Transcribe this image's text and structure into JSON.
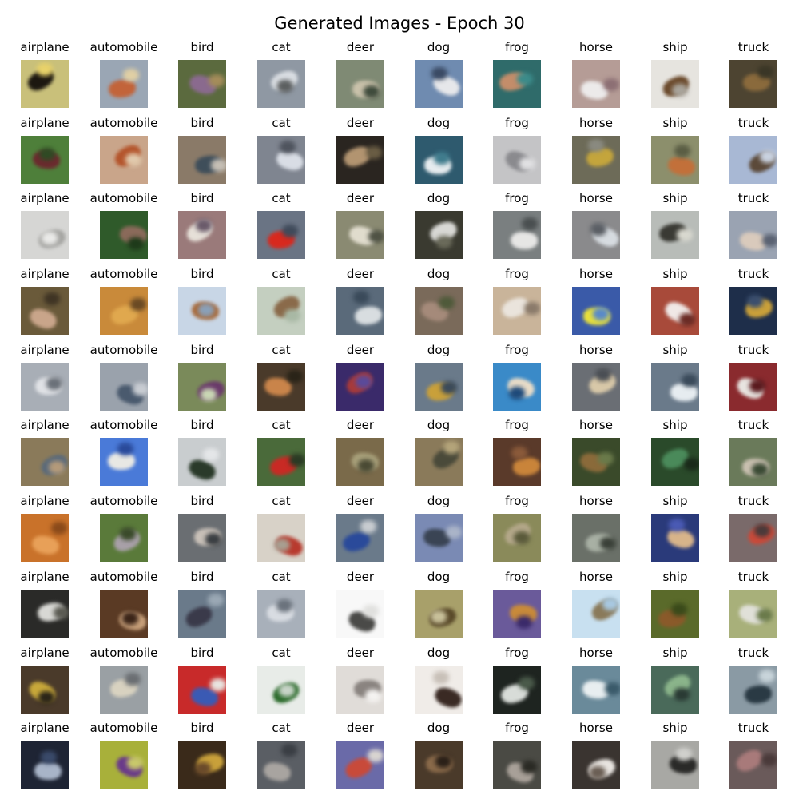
{
  "figure": {
    "title": "Generated Images - Epoch 30"
  },
  "grid": {
    "rows": [
      {
        "cells": [
          {
            "label": "airplane",
            "colors": [
              "#c9c07a",
              "#1c1710",
              "#e8d26a"
            ]
          },
          {
            "label": "automobile",
            "colors": [
              "#9aa6b4",
              "#c2643a",
              "#e0cfa4"
            ]
          },
          {
            "label": "bird",
            "colors": [
              "#5b6a3e",
              "#8a6a8e",
              "#a48c5a"
            ]
          },
          {
            "label": "cat",
            "colors": [
              "#8f98a3",
              "#d9dde2",
              "#5c5f60"
            ]
          },
          {
            "label": "deer",
            "colors": [
              "#7f8a74",
              "#c9c1aa",
              "#3f4b3c"
            ]
          },
          {
            "label": "dog",
            "colors": [
              "#6f8bb0",
              "#e6e7ea",
              "#3a4a64"
            ]
          },
          {
            "label": "frog",
            "colors": [
              "#2f6b6a",
              "#c38d6a",
              "#3b8b8a"
            ]
          },
          {
            "label": "horse",
            "colors": [
              "#b59c96",
              "#eceaea",
              "#8c6f74"
            ]
          },
          {
            "label": "ship",
            "colors": [
              "#e6e4df",
              "#6b4a2c",
              "#a8a39a"
            ]
          },
          {
            "label": "truck",
            "colors": [
              "#4d4431",
              "#8a6a3c",
              "#3a3626"
            ]
          }
        ]
      },
      {
        "cells": [
          {
            "label": "airplane",
            "colors": [
              "#4e7f3a",
              "#6b2a2e",
              "#2f4a24"
            ]
          },
          {
            "label": "automobile",
            "colors": [
              "#c9a58a",
              "#b4552c",
              "#e0c9ac"
            ]
          },
          {
            "label": "bird",
            "colors": [
              "#8a7a68",
              "#3f4e5a",
              "#c6bfb5"
            ]
          },
          {
            "label": "cat",
            "colors": [
              "#7f8590",
              "#d9dde5",
              "#4f545e"
            ]
          },
          {
            "label": "deer",
            "colors": [
              "#2a2520",
              "#b29470",
              "#6a5d44"
            ]
          },
          {
            "label": "dog",
            "colors": [
              "#2e5a6e",
              "#e6ecef",
              "#3f7b8c"
            ]
          },
          {
            "label": "frog",
            "colors": [
              "#c4c4c6",
              "#8a8a8e",
              "#e0e0e2"
            ]
          },
          {
            "label": "horse",
            "colors": [
              "#6d6b58",
              "#c4a53c",
              "#8a8a80"
            ]
          },
          {
            "label": "ship",
            "colors": [
              "#8c8f6c",
              "#c2703a",
              "#5a5d44"
            ]
          },
          {
            "label": "truck",
            "colors": [
              "#a8b8d4",
              "#5c4a3a",
              "#c9d2e0"
            ]
          }
        ]
      },
      {
        "cells": [
          {
            "label": "airplane",
            "colors": [
              "#d6d6d4",
              "#a5a5a2",
              "#eaeae8"
            ]
          },
          {
            "label": "automobile",
            "colors": [
              "#2f5a2a",
              "#8a6a5a",
              "#1e3a1a"
            ]
          },
          {
            "label": "bird",
            "colors": [
              "#9a7a7a",
              "#e6e0d8",
              "#6a5a6a"
            ]
          },
          {
            "label": "cat",
            "colors": [
              "#6a7484",
              "#d8291e",
              "#3f4a5a"
            ]
          },
          {
            "label": "deer",
            "colors": [
              "#8a8a72",
              "#e0dccd",
              "#4f5244"
            ]
          },
          {
            "label": "dog",
            "colors": [
              "#3a3a30",
              "#d8d8d4",
              "#6a6a5a"
            ]
          },
          {
            "label": "frog",
            "colors": [
              "#7a7f80",
              "#e6e6e4",
              "#4a4f50"
            ]
          },
          {
            "label": "horse",
            "colors": [
              "#8a8a8c",
              "#d6dbe0",
              "#5a5e64"
            ]
          },
          {
            "label": "ship",
            "colors": [
              "#b8bcb8",
              "#3a3a34",
              "#d8d8cf"
            ]
          },
          {
            "label": "truck",
            "colors": [
              "#9aa3b2",
              "#d9cabc",
              "#5a6272"
            ]
          }
        ]
      },
      {
        "cells": [
          {
            "label": "airplane",
            "colors": [
              "#6a5a3a",
              "#c9a58a",
              "#3f3424"
            ]
          },
          {
            "label": "automobile",
            "colors": [
              "#c98a3a",
              "#e0a84e",
              "#6a4a24"
            ]
          },
          {
            "label": "bird",
            "colors": [
              "#c8d6e6",
              "#a86a3a",
              "#8aa0b8"
            ]
          },
          {
            "label": "cat",
            "colors": [
              "#c4cfc0",
              "#8a6a4a",
              "#a8b8a4"
            ]
          },
          {
            "label": "deer",
            "colors": [
              "#5a6a7a",
              "#d8dde0",
              "#3a4a5a"
            ]
          },
          {
            "label": "dog",
            "colors": [
              "#7a6a5a",
              "#a58a7a",
              "#4f5a3a"
            ]
          },
          {
            "label": "frog",
            "colors": [
              "#c9b49a",
              "#eae4dc",
              "#8a7a6a"
            ]
          },
          {
            "label": "horse",
            "colors": [
              "#3a5aa8",
              "#e8e03a",
              "#5a8ac8"
            ]
          },
          {
            "label": "ship",
            "colors": [
              "#a84a3a",
              "#f0e8e6",
              "#6a2a24"
            ]
          },
          {
            "label": "truck",
            "colors": [
              "#1e2e4a",
              "#c9a03a",
              "#3a4e6e"
            ]
          }
        ]
      },
      {
        "cells": [
          {
            "label": "airplane",
            "colors": [
              "#a8aeb6",
              "#e0e2e6",
              "#6a7078"
            ]
          },
          {
            "label": "automobile",
            "colors": [
              "#9aa2ac",
              "#4a5a6e",
              "#c8ccd2"
            ]
          },
          {
            "label": "bird",
            "colors": [
              "#7a8a5a",
              "#6a3a6a",
              "#c9d6b4"
            ]
          },
          {
            "label": "cat",
            "colors": [
              "#4a3a2a",
              "#c9844a",
              "#2a2418"
            ]
          },
          {
            "label": "deer",
            "colors": [
              "#3a2a6a",
              "#a83a3a",
              "#5a4a9a"
            ]
          },
          {
            "label": "dog",
            "colors": [
              "#6a7a8a",
              "#c9a03a",
              "#3a4a5a"
            ]
          },
          {
            "label": "frog",
            "colors": [
              "#3a8ac8",
              "#e8dcc8",
              "#1e4a7a"
            ]
          },
          {
            "label": "horse",
            "colors": [
              "#6a6e74",
              "#d8c8a8",
              "#4a4e54"
            ]
          },
          {
            "label": "ship",
            "colors": [
              "#6a7a8a",
              "#e6ecf0",
              "#3a4a5a"
            ]
          },
          {
            "label": "truck",
            "colors": [
              "#8a2a2e",
              "#e8e4e0",
              "#5a1a1e"
            ]
          }
        ]
      },
      {
        "cells": [
          {
            "label": "airplane",
            "colors": [
              "#8a7a5a",
              "#5a6a7a",
              "#b49a7a"
            ]
          },
          {
            "label": "automobile",
            "colors": [
              "#4a7ad8",
              "#e8e8e4",
              "#2a4a9a"
            ]
          },
          {
            "label": "bird",
            "colors": [
              "#c9cdcf",
              "#2a3a2a",
              "#e4e6e8"
            ]
          },
          {
            "label": "cat",
            "colors": [
              "#4a6a3a",
              "#c82a24",
              "#2a3a24"
            ]
          },
          {
            "label": "deer",
            "colors": [
              "#7a6a4a",
              "#a8a07a",
              "#4a4a34"
            ]
          },
          {
            "label": "dog",
            "colors": [
              "#8a7a5a",
              "#4a4a3a",
              "#b4a47a"
            ]
          },
          {
            "label": "frog",
            "colors": [
              "#5a3a2a",
              "#c9843a",
              "#8a5a3a"
            ]
          },
          {
            "label": "horse",
            "colors": [
              "#3a4a2a",
              "#8a6a3a",
              "#6a7a4a"
            ]
          },
          {
            "label": "ship",
            "colors": [
              "#2a4a2a",
              "#4a8a5a",
              "#1a2a1a"
            ]
          },
          {
            "label": "truck",
            "colors": [
              "#6a7a5a",
              "#c9c0b0",
              "#3a4a34"
            ]
          }
        ]
      },
      {
        "cells": [
          {
            "label": "airplane",
            "colors": [
              "#c9722a",
              "#e8a058",
              "#8a4a1a"
            ]
          },
          {
            "label": "automobile",
            "colors": [
              "#5a7a3a",
              "#a8a0a8",
              "#3a4a2a"
            ]
          },
          {
            "label": "bird",
            "colors": [
              "#6a6e72",
              "#c8c0b8",
              "#3a3e42"
            ]
          },
          {
            "label": "cat",
            "colors": [
              "#d8d2c8",
              "#b83a2e",
              "#a89e90"
            ]
          },
          {
            "label": "deer",
            "colors": [
              "#6a7a8a",
              "#2a4a9a",
              "#c8ccd0"
            ]
          },
          {
            "label": "dog",
            "colors": [
              "#7a8ab4",
              "#3a4454",
              "#aab4c8"
            ]
          },
          {
            "label": "frog",
            "colors": [
              "#8a8a5a",
              "#b4a88a",
              "#5a5a3a"
            ]
          },
          {
            "label": "horse",
            "colors": [
              "#6a7068",
              "#a8b0a4",
              "#3a4038"
            ]
          },
          {
            "label": "ship",
            "colors": [
              "#2a3a7a",
              "#d8b48a",
              "#4a5ab4"
            ]
          },
          {
            "label": "truck",
            "colors": [
              "#7a6a6a",
              "#c84a3a",
              "#4a3a3a"
            ]
          }
        ]
      },
      {
        "cells": [
          {
            "label": "airplane",
            "colors": [
              "#2a2a28",
              "#d8d8d4",
              "#5a5a52"
            ]
          },
          {
            "label": "automobile",
            "colors": [
              "#5a3a24",
              "#c8a07a",
              "#3a2418"
            ]
          },
          {
            "label": "bird",
            "colors": [
              "#6a7a8a",
              "#3a3a4a",
              "#9aa8b4"
            ]
          },
          {
            "label": "cat",
            "colors": [
              "#a8b0ba",
              "#d8dce2",
              "#6a727c"
            ]
          },
          {
            "label": "deer",
            "colors": [
              "#f8f8f8",
              "#4a4a48",
              "#e0e0de"
            ]
          },
          {
            "label": "dog",
            "colors": [
              "#a8a06a",
              "#5a4a2a",
              "#c8c09a"
            ]
          },
          {
            "label": "frog",
            "colors": [
              "#6a5a9a",
              "#c88a3a",
              "#3a2a6a"
            ]
          },
          {
            "label": "horse",
            "colors": [
              "#c8e0f0",
              "#8a7a5a",
              "#a8c8e0"
            ]
          },
          {
            "label": "ship",
            "colors": [
              "#5a6a2a",
              "#8a5a2a",
              "#3a4a1a"
            ]
          },
          {
            "label": "truck",
            "colors": [
              "#a8b07a",
              "#e0e0d8",
              "#6a7a4a"
            ]
          }
        ]
      },
      {
        "cells": [
          {
            "label": "airplane",
            "colors": [
              "#4a3a2a",
              "#c8a83a",
              "#2a2418"
            ]
          },
          {
            "label": "automobile",
            "colors": [
              "#9aa0a4",
              "#d8d2c0",
              "#6a6e72"
            ]
          },
          {
            "label": "bird",
            "colors": [
              "#c82a2a",
              "#3a5ab4",
              "#e8e4e0"
            ]
          },
          {
            "label": "cat",
            "colors": [
              "#e8ece8",
              "#2a6a2a",
              "#c8d4c8"
            ]
          },
          {
            "label": "deer",
            "colors": [
              "#e0dcd8",
              "#8a8480",
              "#f4f2f0"
            ]
          },
          {
            "label": "dog",
            "colors": [
              "#f0ece8",
              "#3a2a24",
              "#c8c0b8"
            ]
          },
          {
            "label": "frog",
            "colors": [
              "#1e2420",
              "#d8dcd8",
              "#4a5a4a"
            ]
          },
          {
            "label": "horse",
            "colors": [
              "#6a8a9a",
              "#e8eef0",
              "#3a5a6a"
            ]
          },
          {
            "label": "ship",
            "colors": [
              "#4a6a5a",
              "#8ab48a",
              "#2a3a34"
            ]
          },
          {
            "label": "truck",
            "colors": [
              "#8a9aa4",
              "#2a3a44",
              "#c8d4da"
            ]
          }
        ]
      },
      {
        "cells": [
          {
            "label": "airplane",
            "colors": [
              "#1e2434",
              "#a8b4c8",
              "#3a4a6a"
            ]
          },
          {
            "label": "automobile",
            "colors": [
              "#a8b03a",
              "#6a3a8a",
              "#c8c86a"
            ]
          },
          {
            "label": "bird",
            "colors": [
              "#3a2a1a",
              "#c8a03a",
              "#6a4a2a"
            ]
          },
          {
            "label": "cat",
            "colors": [
              "#5a5e64",
              "#a8a4a0",
              "#3a3e44"
            ]
          },
          {
            "label": "deer",
            "colors": [
              "#6a6aa8",
              "#c84a3a",
              "#d8d4d0"
            ]
          },
          {
            "label": "dog",
            "colors": [
              "#4a3a2a",
              "#8a6a4a",
              "#2a2018"
            ]
          },
          {
            "label": "frog",
            "colors": [
              "#4a4a44",
              "#a8a098",
              "#2a2a24"
            ]
          },
          {
            "label": "horse",
            "colors": [
              "#3a3430",
              "#e8e4e0",
              "#6a5e54"
            ]
          },
          {
            "label": "ship",
            "colors": [
              "#a8a8a4",
              "#2a2a28",
              "#d0d0cc"
            ]
          },
          {
            "label": "truck",
            "colors": [
              "#6a5a5a",
              "#a87a7a",
              "#4a3a3a"
            ]
          }
        ]
      }
    ]
  }
}
